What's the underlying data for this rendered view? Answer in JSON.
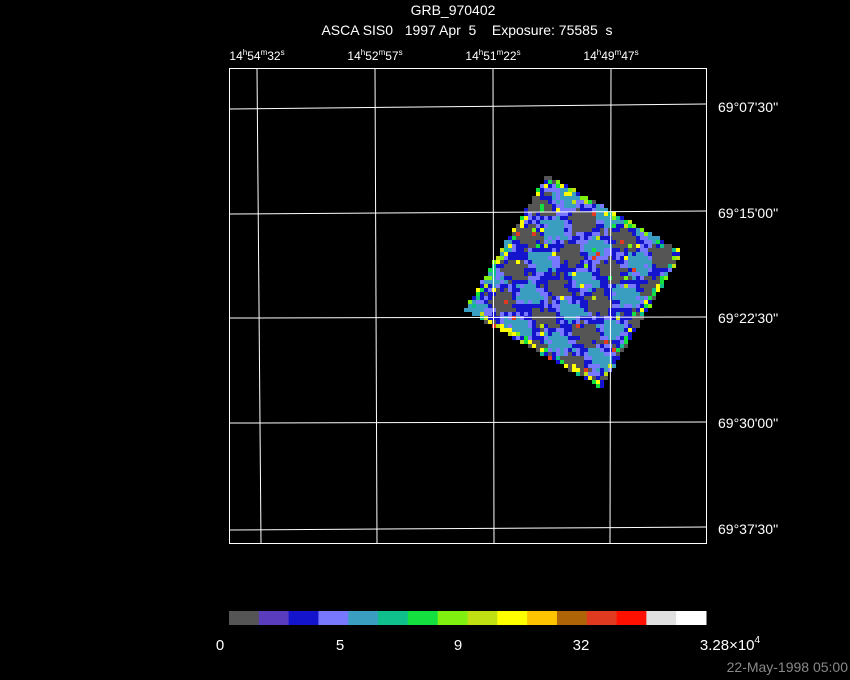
{
  "header": {
    "title": "GRB_970402",
    "subtitle": "ASCA SIS0   1997 Apr  5    Exposure: 75585  s"
  },
  "ra_labels": [
    {
      "parts": [
        "14",
        "h",
        "54",
        "m",
        "32",
        "s"
      ]
    },
    {
      "parts": [
        "14",
        "h",
        "52",
        "m",
        "57",
        "s"
      ]
    },
    {
      "parts": [
        "14",
        "h",
        "51",
        "m",
        "22",
        "s"
      ]
    },
    {
      "parts": [
        "14",
        "h",
        "49",
        "m",
        "47",
        "s"
      ]
    }
  ],
  "dec_labels": [
    "69°07'30''",
    "69°15'00''",
    "69°22'30''",
    "69°30'00''",
    "69°37'30''"
  ],
  "colorbar": {
    "colors": [
      "#555555",
      "#5a3dbf",
      "#1414cc",
      "#7878ff",
      "#3a9ec0",
      "#10c08c",
      "#14e040",
      "#80f010",
      "#c0e014",
      "#ffff00",
      "#ffc400",
      "#b06408",
      "#e03a20",
      "#ff1000",
      "#e0e0e0",
      "#ffffff"
    ],
    "labels": [
      {
        "parts": [
          "0"
        ]
      },
      {
        "parts": [
          "5"
        ]
      },
      {
        "parts": [
          "9"
        ]
      },
      {
        "parts": [
          "32"
        ]
      },
      {
        "parts": [
          "3.28×10",
          "4"
        ]
      }
    ]
  },
  "timestamp": "22-May-1998 05:00"
}
